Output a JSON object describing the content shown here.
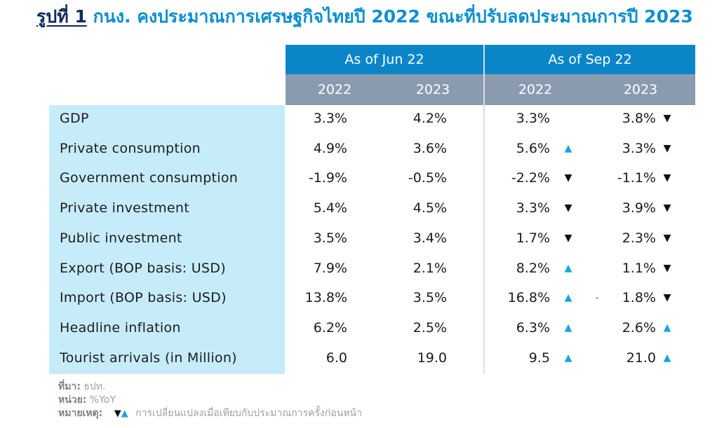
{
  "title": {
    "lead": "รูปที่ 1",
    "text": "กนง. คงประมาณการเศรษฐกิจไทยปี 2022 ขณะที่ปรับลดประมาณการปี 2023"
  },
  "table": {
    "groups": [
      "As of Jun 22",
      "As of Sep 22"
    ],
    "years": [
      "2022",
      "2023",
      "2022",
      "2023"
    ],
    "rows": [
      {
        "label": "GDP",
        "jun22": "3.3%",
        "jun23": "4.2%",
        "sep22": "3.3%",
        "sep22_arrow": "",
        "sep23": "3.8%",
        "sep23_arrow": "▼"
      },
      {
        "label": "Private consumption",
        "jun22": "4.9%",
        "jun23": "3.6%",
        "sep22": "5.6%",
        "sep22_arrow": "▲",
        "sep23": "3.3%",
        "sep23_arrow": "▼"
      },
      {
        "label": "Government consumption",
        "jun22": "-1.9%",
        "jun23": "-0.5%",
        "sep22": "-2.2%",
        "sep22_arrow": "▼",
        "sep23": "-1.1%",
        "sep23_arrow": "▼"
      },
      {
        "label": "Private investment",
        "jun22": "5.4%",
        "jun23": "4.5%",
        "sep22": "3.3%",
        "sep22_arrow": "▼",
        "sep23": "3.9%",
        "sep23_arrow": "▼"
      },
      {
        "label": "Public investment",
        "jun22": "3.5%",
        "jun23": "3.4%",
        "sep22": "1.7%",
        "sep22_arrow": "▼",
        "sep23": "2.3%",
        "sep23_arrow": "▼"
      },
      {
        "label": "Export (BOP basis: USD)",
        "jun22": "7.9%",
        "jun23": "2.1%",
        "sep22": "8.2%",
        "sep22_arrow": "▲",
        "sep23": "1.1%",
        "sep23_arrow": "▼"
      },
      {
        "label": "Import (BOP basis: USD)",
        "jun22": "13.8%",
        "jun23": "3.5%",
        "sep22": "16.8%",
        "sep22_arrow": "▲",
        "sep23": "1.8%",
        "sep23_arrow": "▼",
        "stray": "-"
      },
      {
        "label": "Headline inflation",
        "jun22": "6.2%",
        "jun23": "2.5%",
        "sep22": "6.3%",
        "sep22_arrow": "▲",
        "sep23": "2.6%",
        "sep23_arrow": "▲"
      },
      {
        "label": "Tourist arrivals (in Million)",
        "jun22": "6.0",
        "jun23": "19.0",
        "sep22": "9.5",
        "sep22_arrow": "▲",
        "sep23": "21.0",
        "sep23_arrow": "▲"
      }
    ]
  },
  "notes": {
    "source_label": "ที่มา:",
    "source_value": "ธปท.",
    "unit_label": "หน่วย:",
    "unit_value": "%YoY",
    "remark_label": "หมายเหตุ:",
    "remark_arrow_down": "▼",
    "remark_arrow_up": "▲",
    "remark_text": "การเปลี่ยนแปลงเมื่อเทียบกับประมาณการครั้งก่อนหน้า"
  },
  "colors": {
    "group_header": "#0a86c8",
    "year_header": "#8a9bb0",
    "label_panel": "#c6ecfa",
    "arrow_up": "#14a5e0",
    "arrow_down": "#111111",
    "title": "#0a8fd0"
  }
}
